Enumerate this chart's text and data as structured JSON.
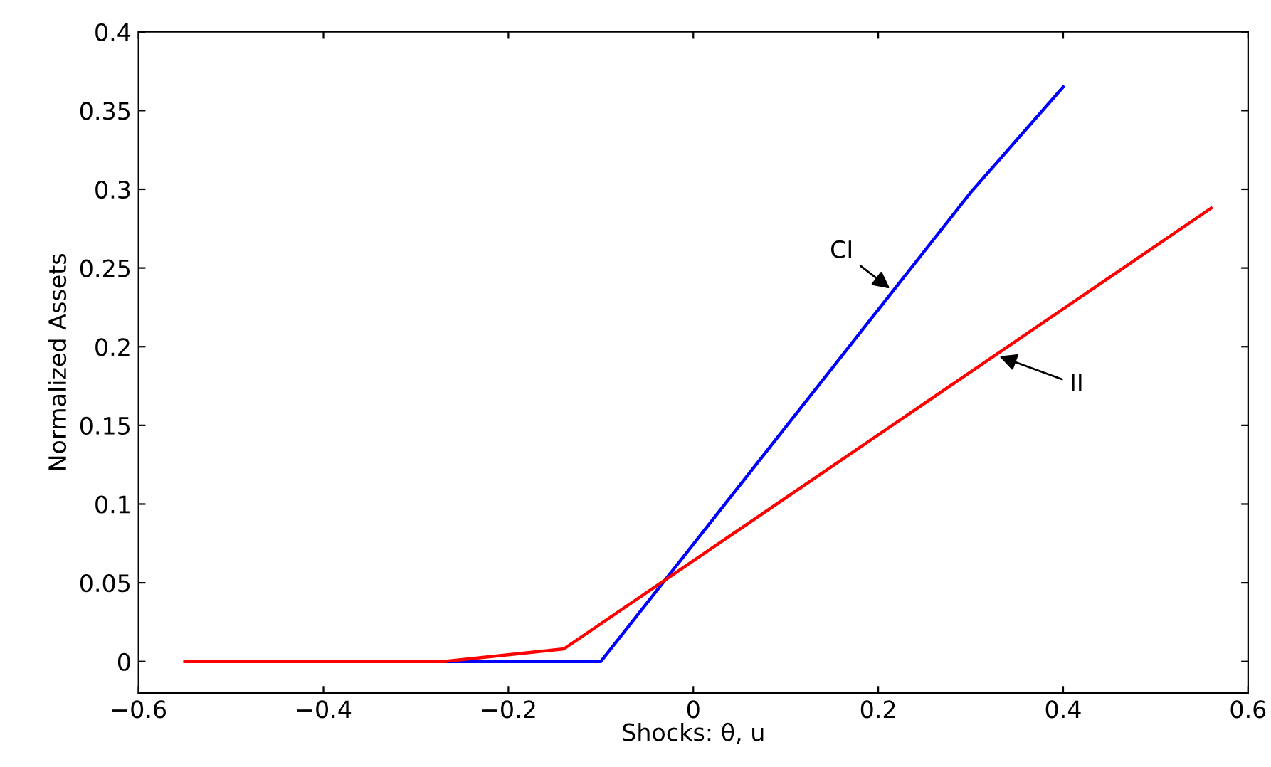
{
  "chart_data": {
    "type": "line",
    "xlabel": "Shocks: θ, u",
    "ylabel": "Normalized Assets",
    "series": [
      {
        "name": "CI",
        "color": "#0000ff",
        "x": [
          -0.4,
          -0.1,
          0.3,
          0.4
        ],
        "values": [
          0,
          0,
          0.298,
          0.365
        ]
      },
      {
        "name": "II",
        "color": "#ff0000",
        "x": [
          -0.55,
          -0.27,
          -0.14,
          0.56
        ],
        "values": [
          0,
          0,
          0.008,
          0.288
        ]
      }
    ],
    "xlim": [
      -0.6,
      0.6
    ],
    "xticks": [
      {
        "value": -0.6,
        "label": "−0.6"
      },
      {
        "value": -0.4,
        "label": "−0.4"
      },
      {
        "value": -0.2,
        "label": "−0.2"
      },
      0,
      0.2,
      0.4,
      0.6
    ],
    "ylim": [
      -0.02,
      0.4
    ],
    "yticks": [
      0,
      0.05,
      0.1,
      0.15,
      0.2,
      0.25,
      0.3,
      0.35,
      0.4
    ],
    "grid": false,
    "legend": false
  }
}
